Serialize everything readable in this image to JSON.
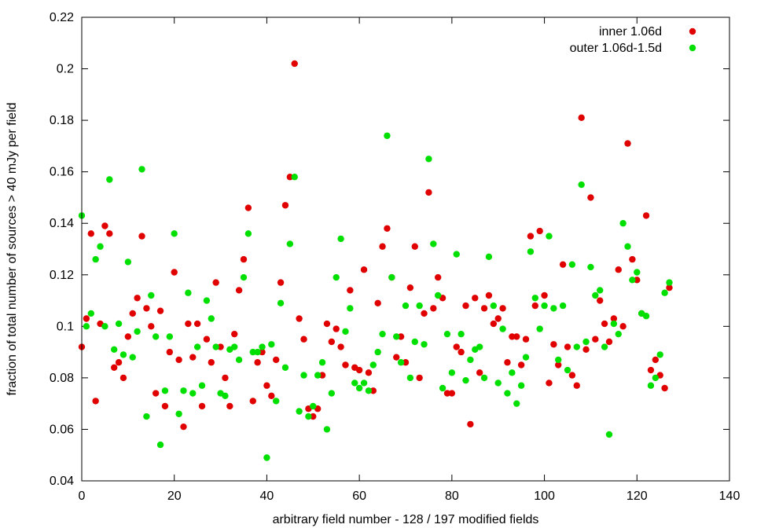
{
  "chart_data": {
    "type": "scatter",
    "xlabel": "arbitrary field number - 128 / 197 modified fields",
    "ylabel": "fraction of total number of sources > 40 mJy per field",
    "xlim": [
      0,
      140
    ],
    "ylim": [
      0.04,
      0.22
    ],
    "xticks": [
      0,
      20,
      40,
      60,
      80,
      100,
      120,
      140
    ],
    "yticks": [
      0.04,
      0.06,
      0.08,
      0.1,
      0.12,
      0.14,
      0.16,
      0.18,
      0.2,
      0.22
    ],
    "ytick_labels": [
      "0.04",
      "0.06",
      "0.08",
      "0.1",
      "0.12",
      "0.14",
      "0.16",
      "0.18",
      "0.2",
      "0.22"
    ],
    "legend_position": "top-right",
    "series": [
      {
        "name": "inner 1.06d",
        "color": "#e00000",
        "x": [
          0,
          1,
          2,
          3,
          4,
          5,
          6,
          7,
          8,
          9,
          10,
          11,
          12,
          13,
          14,
          15,
          16,
          17,
          18,
          19,
          20,
          21,
          22,
          23,
          24,
          25,
          26,
          27,
          28,
          29,
          30,
          31,
          32,
          33,
          34,
          35,
          36,
          37,
          38,
          39,
          40,
          41,
          42,
          43,
          44,
          45,
          46,
          47,
          48,
          49,
          50,
          51,
          52,
          53,
          54,
          55,
          56,
          57,
          58,
          59,
          60,
          61,
          62,
          63,
          64,
          65,
          66,
          67,
          68,
          69,
          70,
          71,
          72,
          73,
          74,
          75,
          76,
          77,
          78,
          79,
          80,
          81,
          82,
          83,
          84,
          85,
          86,
          87,
          88,
          89,
          90,
          91,
          92,
          93,
          94,
          95,
          96,
          97,
          98,
          99,
          100,
          101,
          102,
          103,
          104,
          105,
          106,
          107,
          108,
          109,
          110,
          111,
          112,
          113,
          114,
          115,
          116,
          117,
          118,
          119,
          120,
          121,
          122,
          123,
          124,
          125,
          126,
          127
        ],
        "y": [
          0.092,
          0.103,
          0.136,
          0.071,
          0.101,
          0.139,
          0.136,
          0.084,
          0.086,
          0.08,
          0.096,
          0.105,
          0.111,
          0.135,
          0.107,
          0.1,
          0.074,
          0.106,
          0.069,
          0.09,
          0.121,
          0.087,
          0.061,
          0.101,
          0.088,
          0.101,
          0.069,
          0.095,
          0.086,
          0.117,
          0.092,
          0.08,
          0.069,
          0.097,
          0.114,
          0.126,
          0.146,
          0.071,
          0.086,
          0.09,
          0.077,
          0.073,
          0.087,
          0.117,
          0.147,
          0.158,
          0.202,
          0.103,
          0.095,
          0.068,
          0.065,
          0.068,
          0.081,
          0.101,
          0.094,
          0.099,
          0.092,
          0.085,
          0.114,
          0.084,
          0.083,
          0.122,
          0.082,
          0.075,
          0.109,
          0.131,
          0.138,
          0.119,
          0.088,
          0.096,
          0.086,
          0.115,
          0.131,
          0.08,
          0.105,
          0.152,
          0.107,
          0.119,
          0.111,
          0.074,
          0.074,
          0.092,
          0.09,
          0.108,
          0.062,
          0.111,
          0.082,
          0.107,
          0.112,
          0.101,
          0.103,
          0.107,
          0.086,
          0.096,
          0.096,
          0.085,
          0.095,
          0.135,
          0.108,
          0.137,
          0.112,
          0.078,
          0.093,
          0.085,
          0.124,
          0.092,
          0.081,
          0.077,
          0.181,
          0.091,
          0.15,
          0.095,
          0.11,
          0.101,
          0.094,
          0.103,
          0.122,
          0.1,
          0.171,
          0.126,
          0.118,
          0.105,
          0.143,
          0.083,
          0.087,
          0.081,
          0.076,
          0.115
        ]
      },
      {
        "name": "outer 1.06d-1.5d",
        "color": "#00e000",
        "x": [
          0,
          1,
          2,
          3,
          4,
          5,
          6,
          7,
          8,
          9,
          10,
          11,
          12,
          13,
          14,
          15,
          16,
          17,
          18,
          19,
          20,
          21,
          22,
          23,
          24,
          25,
          26,
          27,
          28,
          29,
          30,
          31,
          32,
          33,
          34,
          35,
          36,
          37,
          38,
          39,
          40,
          41,
          42,
          43,
          44,
          45,
          46,
          47,
          48,
          49,
          50,
          51,
          52,
          53,
          54,
          55,
          56,
          57,
          58,
          59,
          60,
          61,
          62,
          63,
          64,
          65,
          66,
          67,
          68,
          69,
          70,
          71,
          72,
          73,
          74,
          75,
          76,
          77,
          78,
          79,
          80,
          81,
          82,
          83,
          84,
          85,
          86,
          87,
          88,
          89,
          90,
          91,
          92,
          93,
          94,
          95,
          96,
          97,
          98,
          99,
          100,
          101,
          102,
          103,
          104,
          105,
          106,
          107,
          108,
          109,
          110,
          111,
          112,
          113,
          114,
          115,
          116,
          117,
          118,
          119,
          120,
          121,
          122,
          123,
          124,
          125,
          126,
          127
        ],
        "y": [
          0.143,
          0.1,
          0.105,
          0.126,
          0.131,
          0.1,
          0.157,
          0.091,
          0.101,
          0.089,
          0.125,
          0.088,
          0.098,
          0.161,
          0.065,
          0.112,
          0.096,
          0.054,
          0.075,
          0.096,
          0.136,
          0.066,
          0.075,
          0.113,
          0.074,
          0.092,
          0.077,
          0.11,
          0.103,
          0.092,
          0.074,
          0.073,
          0.091,
          0.092,
          0.087,
          0.119,
          0.136,
          0.09,
          0.09,
          0.092,
          0.049,
          0.093,
          0.071,
          0.109,
          0.084,
          0.132,
          0.158,
          0.067,
          0.081,
          0.065,
          0.069,
          0.081,
          0.086,
          0.06,
          0.074,
          0.119,
          0.134,
          0.098,
          0.107,
          0.078,
          0.076,
          0.078,
          0.075,
          0.085,
          0.09,
          0.097,
          0.174,
          0.119,
          0.096,
          0.086,
          0.108,
          0.08,
          0.094,
          0.108,
          0.093,
          0.165,
          0.132,
          0.112,
          0.076,
          0.097,
          0.082,
          0.128,
          0.097,
          0.079,
          0.087,
          0.091,
          0.092,
          0.08,
          0.127,
          0.108,
          0.078,
          0.099,
          0.074,
          0.082,
          0.07,
          0.077,
          0.088,
          0.129,
          0.111,
          0.099,
          0.108,
          0.135,
          0.107,
          0.087,
          0.108,
          0.083,
          0.124,
          0.092,
          0.155,
          0.094,
          0.123,
          0.112,
          0.114,
          0.092,
          0.058,
          0.101,
          0.097,
          0.14,
          0.131,
          0.118,
          0.121,
          0.105,
          0.104,
          0.077,
          0.08,
          0.089,
          0.113,
          0.117
        ]
      }
    ]
  }
}
